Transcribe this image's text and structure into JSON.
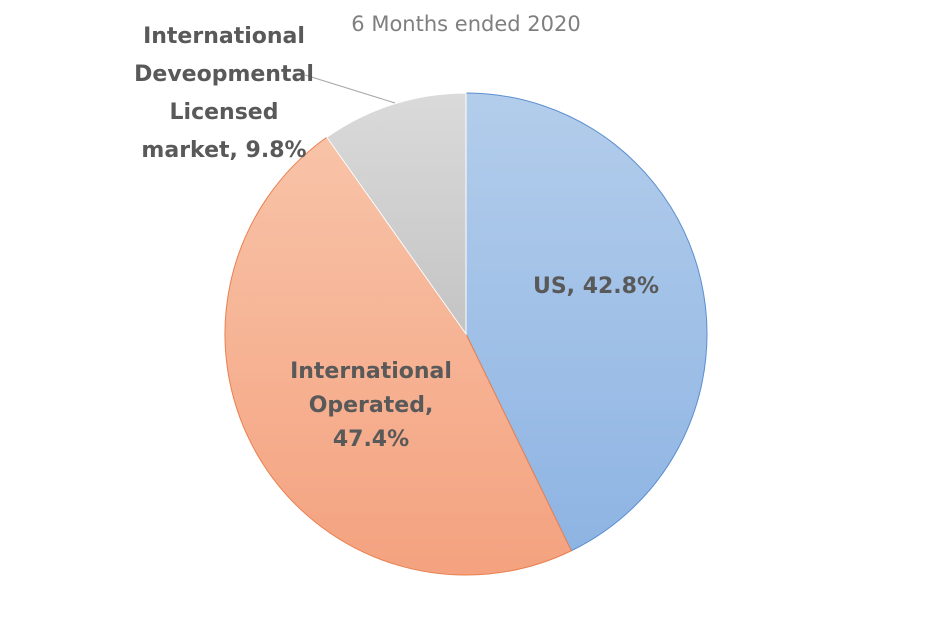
{
  "chart_data": {
    "type": "pie",
    "title": "6 Months ended 2020",
    "legend": "none",
    "slices": [
      {
        "name": "US",
        "value": 42.8,
        "label_lines": [
          "US, 42.8%"
        ],
        "color": "#9dbfe6",
        "stroke": "#5b8fd0"
      },
      {
        "name": "International Operated",
        "value": 47.4,
        "label_lines": [
          "International",
          "Operated,",
          "47.4%"
        ],
        "color": "#f6ac8b",
        "stroke": "#e9804f"
      },
      {
        "name": "International Deveopmental Licensed market",
        "value": 9.8,
        "label_lines": [
          "International",
          "Deveopmental",
          "Licensed",
          "market, 9.8%"
        ],
        "color": "#cfcfcf",
        "stroke": "#ffffff"
      }
    ]
  }
}
